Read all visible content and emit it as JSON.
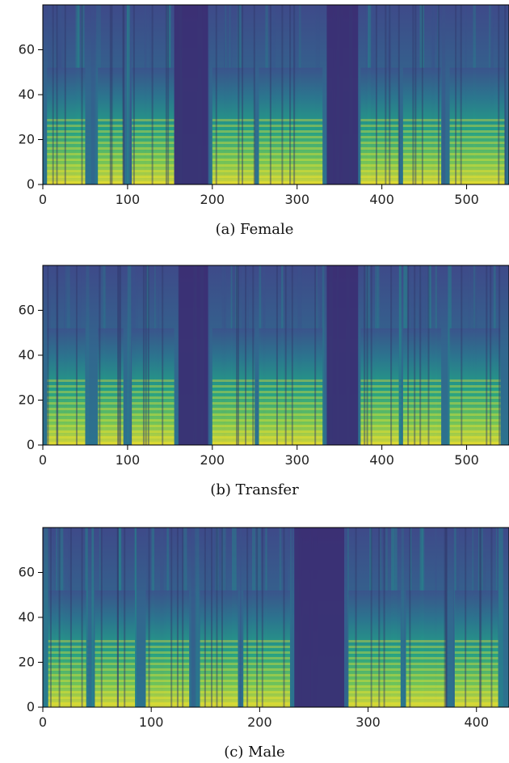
{
  "chart_data": [
    {
      "type": "heatmap",
      "title": "",
      "caption": "(a) Female",
      "xlabel": "",
      "ylabel": "",
      "xlim": [
        0,
        550
      ],
      "ylim": [
        0,
        80
      ],
      "xticks": [
        0,
        100,
        200,
        300,
        400,
        500
      ],
      "yticks": [
        0,
        20,
        40,
        60
      ],
      "colormap": "viridis",
      "silent_regions": [
        [
          155,
          195
        ],
        [
          335,
          372
        ]
      ],
      "voiced_segments": [
        [
          5,
          50
        ],
        [
          65,
          95
        ],
        [
          105,
          155
        ],
        [
          200,
          250
        ],
        [
          255,
          330
        ],
        [
          375,
          420
        ],
        [
          425,
          470
        ],
        [
          480,
          545
        ]
      ],
      "colors": [
        "#440154",
        "#3b528b",
        "#21918c",
        "#5ec962",
        "#fde725"
      ]
    },
    {
      "type": "heatmap",
      "title": "",
      "caption": "(b) Transfer",
      "xlabel": "",
      "ylabel": "",
      "xlim": [
        0,
        550
      ],
      "ylim": [
        0,
        80
      ],
      "xticks": [
        0,
        100,
        200,
        300,
        400,
        500
      ],
      "yticks": [
        0,
        20,
        40,
        60
      ],
      "colormap": "viridis",
      "silent_regions": [
        [
          160,
          195
        ],
        [
          335,
          372
        ]
      ],
      "voiced_segments": [
        [
          5,
          50
        ],
        [
          65,
          95
        ],
        [
          105,
          155
        ],
        [
          200,
          250
        ],
        [
          255,
          330
        ],
        [
          375,
          420
        ],
        [
          425,
          470
        ],
        [
          480,
          540
        ]
      ],
      "colors": [
        "#440154",
        "#3b528b",
        "#21918c",
        "#5ec962",
        "#fde725"
      ]
    },
    {
      "type": "heatmap",
      "title": "",
      "caption": "(c) Male",
      "xlabel": "",
      "ylabel": "",
      "xlim": [
        0,
        430
      ],
      "ylim": [
        0,
        80
      ],
      "xticks": [
        0,
        100,
        200,
        300,
        400
      ],
      "yticks": [
        0,
        20,
        40,
        60
      ],
      "colormap": "viridis",
      "silent_regions": [
        [
          232,
          278
        ]
      ],
      "voiced_segments": [
        [
          5,
          40
        ],
        [
          48,
          85
        ],
        [
          95,
          135
        ],
        [
          145,
          180
        ],
        [
          185,
          228
        ],
        [
          282,
          330
        ],
        [
          335,
          372
        ],
        [
          380,
          420
        ]
      ],
      "colors": [
        "#440154",
        "#3b528b",
        "#21918c",
        "#5ec962",
        "#fde725"
      ]
    }
  ]
}
